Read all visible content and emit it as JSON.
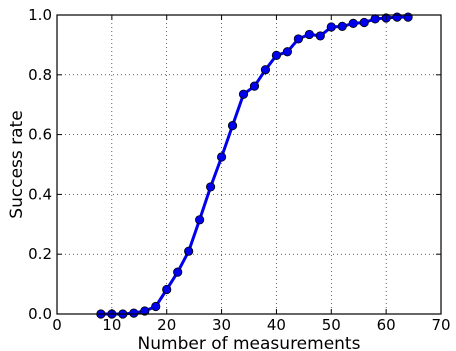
{
  "chart_data": {
    "type": "line",
    "xlabel": "Number of measurements",
    "ylabel": "Success rate",
    "xlim": [
      0,
      70
    ],
    "ylim": [
      0,
      1
    ],
    "x_ticks": [
      0,
      10,
      20,
      30,
      40,
      50,
      60,
      70
    ],
    "x_tick_labels": [
      "0",
      "10",
      "20",
      "30",
      "40",
      "50",
      "60",
      "70"
    ],
    "y_ticks": [
      0,
      0.2,
      0.4,
      0.6,
      0.8,
      1.0
    ],
    "y_tick_labels": [
      "0.0",
      "0.2",
      "0.4",
      "0.6",
      "0.8",
      "1.0"
    ],
    "grid": true,
    "grid_style": "dotted",
    "line_color": "#0000ee",
    "marker_color": "#0000ee",
    "marker": "circle",
    "series": [
      {
        "x": [
          8,
          10,
          12,
          14,
          16,
          18,
          20,
          22,
          24,
          26,
          28,
          30,
          32,
          34,
          36,
          38,
          40,
          42,
          44,
          46,
          48,
          50,
          52,
          54,
          56,
          58,
          60,
          62,
          64
        ],
        "y": [
          0.0,
          0.0,
          0.0,
          0.003,
          0.01,
          0.025,
          0.082,
          0.14,
          0.21,
          0.315,
          0.425,
          0.525,
          0.63,
          0.735,
          0.762,
          0.817,
          0.865,
          0.877,
          0.92,
          0.935,
          0.93,
          0.96,
          0.962,
          0.972,
          0.975,
          0.987,
          0.99,
          0.993,
          0.993
        ]
      }
    ]
  }
}
